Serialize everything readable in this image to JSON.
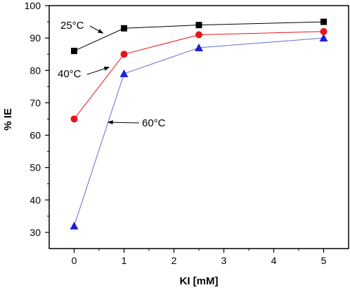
{
  "chart_data": {
    "type": "line",
    "xlabel": "KI [mM]",
    "ylabel": "% IE",
    "xlim": [
      -0.5,
      5.5
    ],
    "ylim": [
      25,
      100
    ],
    "xticks": [
      0,
      1,
      2,
      3,
      4,
      5
    ],
    "yticks": [
      30,
      40,
      50,
      60,
      70,
      80,
      90,
      100
    ],
    "grid": false,
    "legend": "none",
    "series": [
      {
        "name": "25°C",
        "marker": "square",
        "color": "#000000",
        "line_color": "#000000",
        "x": [
          0,
          1,
          2.5,
          5
        ],
        "y": [
          86,
          93,
          94,
          95
        ]
      },
      {
        "name": "40°C",
        "marker": "circle",
        "color": "#e8141c",
        "line_color": "#e8141c",
        "x": [
          0,
          1,
          2.5,
          5
        ],
        "y": [
          65,
          85,
          91,
          92
        ]
      },
      {
        "name": "60°C",
        "marker": "triangle",
        "color": "#1f1fd6",
        "line_color": "#6b6bd8",
        "x": [
          0,
          1,
          2.5,
          5
        ],
        "y": [
          32,
          79,
          87,
          90
        ]
      }
    ],
    "annotations": [
      {
        "text": "25°C",
        "series": 0,
        "arrow_to": [
          0.6,
          90.0
        ]
      },
      {
        "text": "40°C",
        "series": 1,
        "arrow_to": [
          0.75,
          80.0
        ]
      },
      {
        "text": "60°C",
        "series": 2,
        "arrow_to": [
          0.68,
          64.0
        ]
      }
    ]
  }
}
